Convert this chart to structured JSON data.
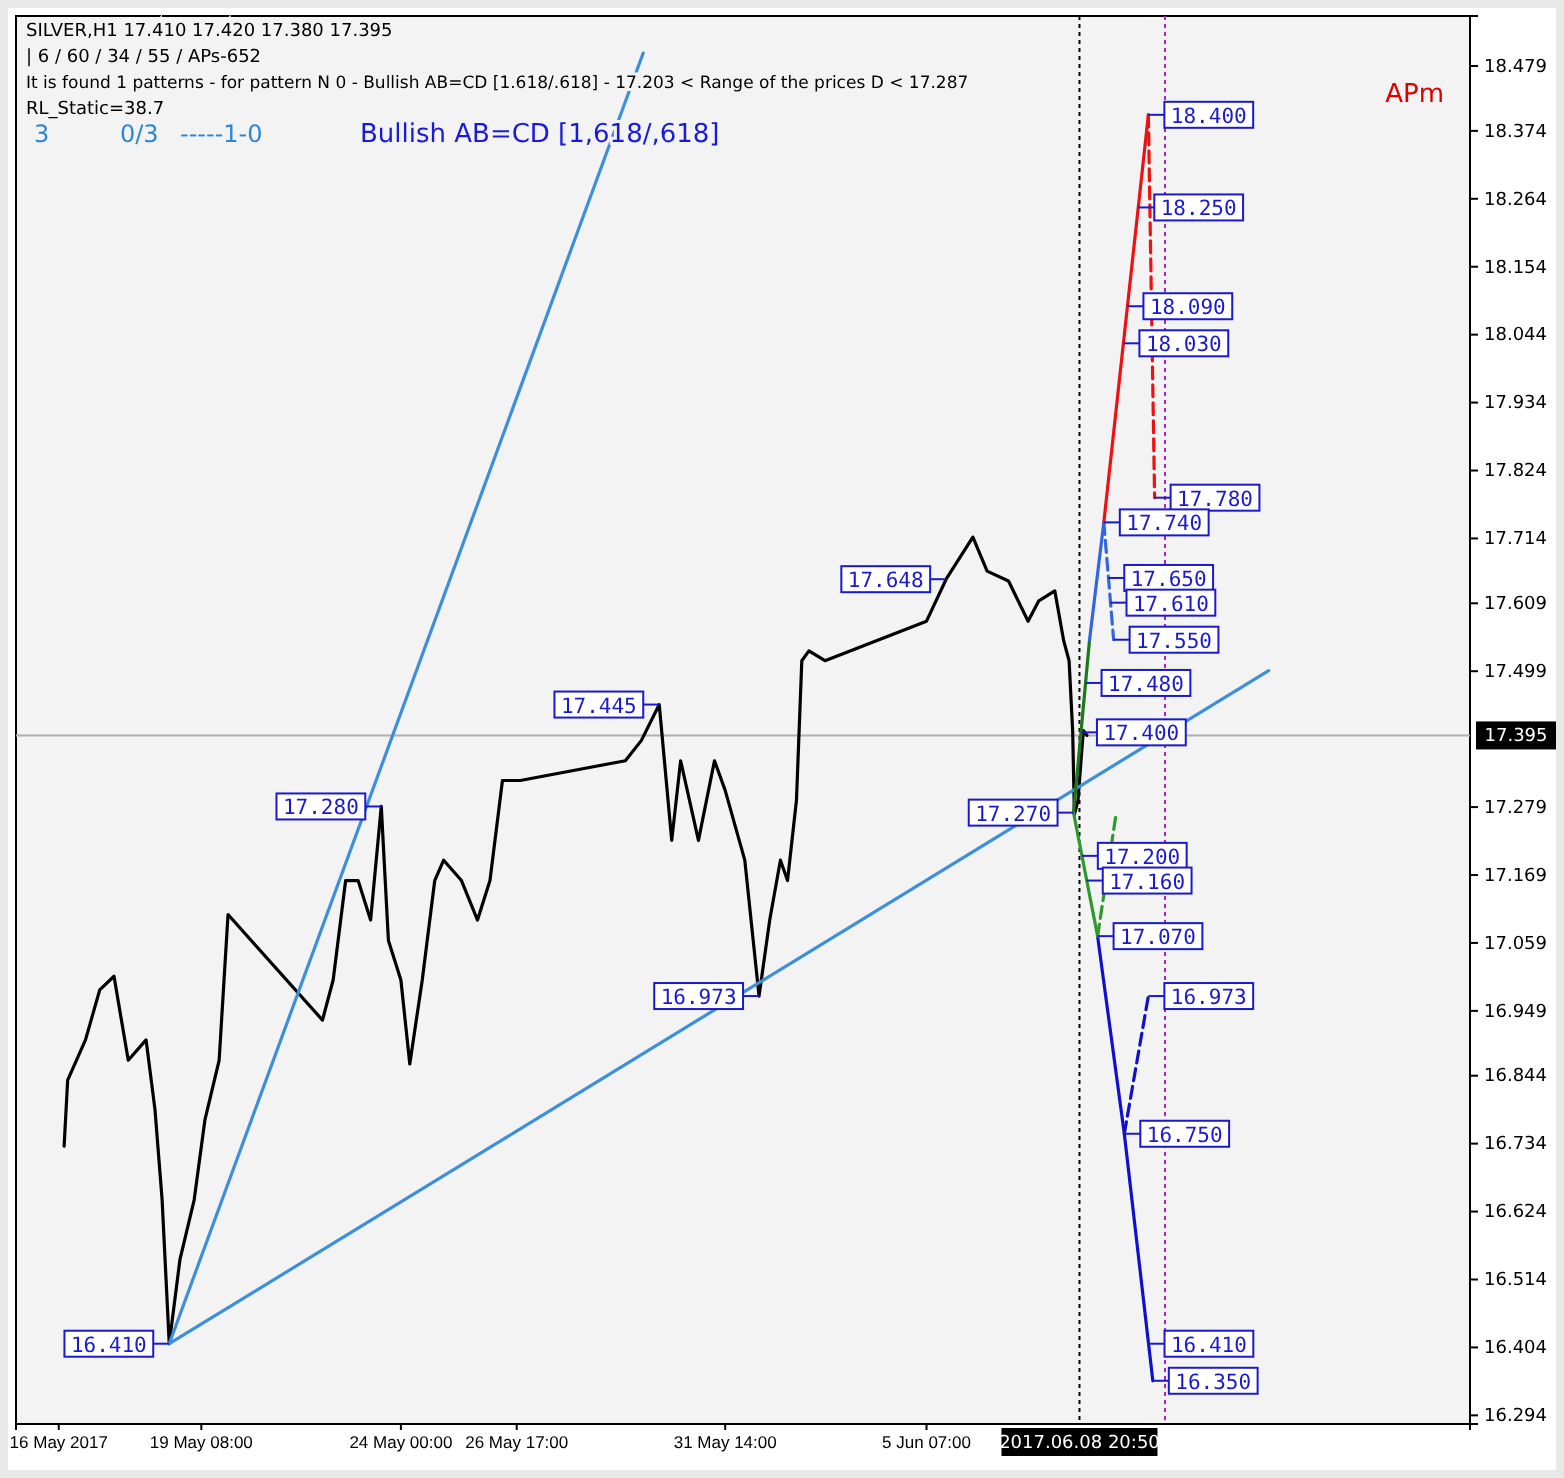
{
  "chart_data": {
    "type": "line",
    "title": "SILVER,H1  17.410 17.420 17.380 17.395",
    "xlim": [
      "2017-05-15T00:00",
      "2017-06-18T00:00"
    ],
    "ylim": [
      16.28,
      18.56
    ],
    "xticks": [
      {
        "value": "2017-05-16T00:00",
        "label": "16 May 2017"
      },
      {
        "value": "2017-05-19T08:00",
        "label": "19 May 08:00"
      },
      {
        "value": "2017-05-24T00:00",
        "label": "24 May 00:00"
      },
      {
        "value": "2017-05-26T17:00",
        "label": "26 May 17:00"
      },
      {
        "value": "2017-05-31T14:00",
        "label": "31 May 14:00"
      },
      {
        "value": "2017-06-05T07:00",
        "label": "5 Jun 07:00"
      }
    ],
    "yticks": [
      18.479,
      18.374,
      18.264,
      18.154,
      18.044,
      17.934,
      17.824,
      17.714,
      17.609,
      17.499,
      17.279,
      17.169,
      17.059,
      16.949,
      16.844,
      16.734,
      16.624,
      16.514,
      16.404,
      16.294
    ],
    "grid": false,
    "series": [
      {
        "color": "#000000",
        "line_style": "solid",
        "x": [
          "2017-05-16T03:00",
          "2017-05-16T05:00",
          "2017-05-16T15:00",
          "2017-05-16T23:00",
          "2017-05-17T07:00",
          "2017-05-17T15:00",
          "2017-05-18T01:00",
          "2017-05-18T06:00",
          "2017-05-18T10:00",
          "2017-05-18T14:00",
          "2017-05-18T20:00",
          "2017-05-19T04:00",
          "2017-05-19T10:00",
          "2017-05-19T18:00",
          "2017-05-19T23:00",
          "2017-05-22T04:00",
          "2017-05-22T10:00",
          "2017-05-22T17:00",
          "2017-05-23T00:00",
          "2017-05-23T07:00",
          "2017-05-23T13:00",
          "2017-05-23T17:00",
          "2017-05-24T00:00",
          "2017-05-24T05:00",
          "2017-05-24T12:00",
          "2017-05-24T19:00",
          "2017-05-25T00:00",
          "2017-05-25T10:00",
          "2017-05-25T19:00",
          "2017-05-26T02:00",
          "2017-05-26T09:00",
          "2017-05-26T19:00",
          "2017-05-29T06:00",
          "2017-05-29T15:00",
          "2017-05-30T01:00",
          "2017-05-30T08:00",
          "2017-05-30T13:00",
          "2017-05-30T23:00",
          "2017-05-31T08:00",
          "2017-05-31T14:00",
          "2017-06-01T01:00",
          "2017-06-01T09:00",
          "2017-06-01T15:00",
          "2017-06-01T21:00",
          "2017-06-02T01:00",
          "2017-06-02T06:00",
          "2017-06-02T09:00",
          "2017-06-02T13:00",
          "2017-06-02T22:00",
          "2017-06-05T07:00",
          "2017-06-05T18:00",
          "2017-06-06T09:00",
          "2017-06-06T17:00",
          "2017-06-07T05:00",
          "2017-06-07T16:00",
          "2017-06-07T22:00",
          "2017-06-08T07:00",
          "2017-06-08T12:00",
          "2017-06-08T15:00",
          "2017-06-08T17:00",
          "2017-06-08T18:00",
          "2017-06-08T20:00",
          "2017-06-08T23:00",
          "2017-06-09T01:00"
        ],
        "values": [
          16.73,
          16.837,
          16.902,
          16.983,
          17.005,
          16.869,
          16.902,
          16.789,
          16.643,
          16.41,
          16.546,
          16.643,
          16.772,
          16.869,
          17.105,
          16.934,
          16.999,
          17.16,
          17.16,
          17.096,
          17.28,
          17.063,
          16.999,
          16.863,
          16.999,
          17.16,
          17.193,
          17.16,
          17.096,
          17.16,
          17.322,
          17.322,
          17.354,
          17.387,
          17.445,
          17.225,
          17.354,
          17.225,
          17.354,
          17.306,
          17.193,
          16.973,
          17.096,
          17.193,
          17.16,
          17.29,
          17.516,
          17.532,
          17.516,
          17.58,
          17.648,
          17.716,
          17.661,
          17.645,
          17.58,
          17.613,
          17.629,
          17.548,
          17.516,
          17.403,
          17.267,
          17.29,
          17.403,
          17.395
        ]
      },
      {
        "color": "#3d8fdb",
        "line_style": "solid",
        "x": [
          "2017-05-18T14:00",
          "2017-05-29T16:00"
        ],
        "values": [
          16.41,
          18.5
        ]
      },
      {
        "color": "#3d8fdb",
        "line_style": "solid",
        "x": [
          "2017-05-18T14:00",
          "2017-06-13T07:00"
        ],
        "values": [
          16.41,
          17.5
        ]
      },
      {
        "color": "#1a7a1a",
        "line_style": "solid",
        "x": [
          "2017-06-08T17:30",
          "2017-06-09T02:30"
        ],
        "values": [
          17.27,
          17.55
        ]
      },
      {
        "color": "#3366dd",
        "line_style": "solid",
        "x": [
          "2017-06-09T02:30",
          "2017-06-09T10:30"
        ],
        "values": [
          17.55,
          17.74
        ]
      },
      {
        "color": "#ee1111",
        "line_style": "solid",
        "x": [
          "2017-06-09T10:30",
          "2017-06-10T11:30"
        ],
        "values": [
          17.74,
          18.4
        ]
      },
      {
        "color": "#ee1111",
        "line_style": "dashed",
        "x": [
          "2017-06-10T11:30",
          "2017-06-10T15:00"
        ],
        "values": [
          18.4,
          17.78
        ]
      },
      {
        "color": "#3366dd",
        "line_style": "dashed",
        "x": [
          "2017-06-09T10:30",
          "2017-06-09T16:00"
        ],
        "values": [
          17.74,
          17.55
        ]
      },
      {
        "color": "#2e9a2e",
        "line_style": "solid",
        "x": [
          "2017-06-08T17:30",
          "2017-06-09T07:00"
        ],
        "values": [
          17.27,
          17.07
        ]
      },
      {
        "color": "#1010cc",
        "line_style": "solid",
        "x": [
          "2017-06-09T07:00",
          "2017-06-09T22:00",
          "2017-06-10T14:00"
        ],
        "values": [
          17.07,
          16.75,
          16.35
        ]
      },
      {
        "color": "#1010cc",
        "line_style": "dashed",
        "x": [
          "2017-06-09T22:00",
          "2017-06-10T11:30"
        ],
        "values": [
          16.75,
          16.973
        ]
      },
      {
        "color": "#2e9a2e",
        "line_style": "dashed",
        "x": [
          "2017-06-09T07:00",
          "2017-06-09T17:30"
        ],
        "values": [
          17.07,
          17.27
        ]
      }
    ],
    "ref_lines": [
      {
        "axis": "y",
        "value": 17.395,
        "label": "17.395",
        "color": "#b0b0b0",
        "line_style": "solid"
      },
      {
        "axis": "x",
        "value": "2017-06-08T20:50",
        "label": "2017.06.08 20:50",
        "color": "#000000",
        "line_style": "dotted"
      },
      {
        "axis": "x",
        "value": "2017-06-10T20:50",
        "color": "#aa22cc",
        "line_style": "dotted"
      }
    ],
    "annotations": [
      "| 6 / 60 / 34 / 55 / APs-652",
      "It is found 1 patterns  -  for pattern N 0 - Bullish AB=CD [1.618/.618] - 17.203 < Range of the prices D < 17.287",
      "RL_Static=38.7",
      "3",
      "0/3",
      "-----1-0",
      "Bullish AB=CD [1,618/,618]",
      "APm",
      {
        "text": "18.400",
        "x": "2017-06-10T11:30",
        "y": 18.4
      },
      {
        "text": "18.250",
        "x": "2017-06-10T05:50",
        "y": 18.25
      },
      {
        "text": "18.090",
        "x": "2017-06-09T23:45",
        "y": 18.09
      },
      {
        "text": "18.030",
        "x": "2017-06-09T21:30",
        "y": 18.03
      },
      {
        "text": "17.780",
        "x": "2017-06-10T15:00",
        "y": 17.78
      },
      {
        "text": "17.740",
        "x": "2017-06-09T10:30",
        "y": 17.74
      },
      {
        "text": "17.650",
        "x": "2017-06-09T13:00",
        "y": 17.65
      },
      {
        "text": "17.610",
        "x": "2017-06-09T14:15",
        "y": 17.61
      },
      {
        "text": "17.550",
        "x": "2017-06-09T16:00",
        "y": 17.55
      },
      {
        "text": "17.480",
        "x": "2017-06-09T00:15",
        "y": 17.48
      },
      {
        "text": "17.400",
        "x": "2017-06-08T21:40",
        "y": 17.4
      },
      {
        "text": "17.270",
        "x": "2017-06-08T17:30",
        "y": 17.27
      },
      {
        "text": "17.200",
        "x": "2017-06-08T22:10",
        "y": 17.2
      },
      {
        "text": "17.160",
        "x": "2017-06-09T00:55",
        "y": 17.16
      },
      {
        "text": "17.070",
        "x": "2017-06-09T07:00",
        "y": 17.07
      },
      {
        "text": "16.973",
        "x": "2017-06-10T11:30",
        "y": 16.973
      },
      {
        "text": "16.750",
        "x": "2017-06-09T22:00",
        "y": 16.75
      },
      {
        "text": "16.410",
        "x": "2017-06-10T11:35",
        "y": 16.41
      },
      {
        "text": "16.350",
        "x": "2017-06-10T14:00",
        "y": 16.35
      },
      {
        "text": "17.280",
        "x": "2017-05-23T13:00",
        "y": 17.28
      },
      {
        "text": "17.445",
        "x": "2017-05-30T01:00",
        "y": 17.445
      },
      {
        "text": "17.648",
        "x": "2017-06-05T18:00",
        "y": 17.648
      },
      {
        "text": "16.973",
        "x": "2017-06-01T09:00",
        "y": 16.973
      },
      {
        "text": "16.410",
        "x": "2017-05-18T14:00",
        "y": 16.41
      }
    ]
  }
}
